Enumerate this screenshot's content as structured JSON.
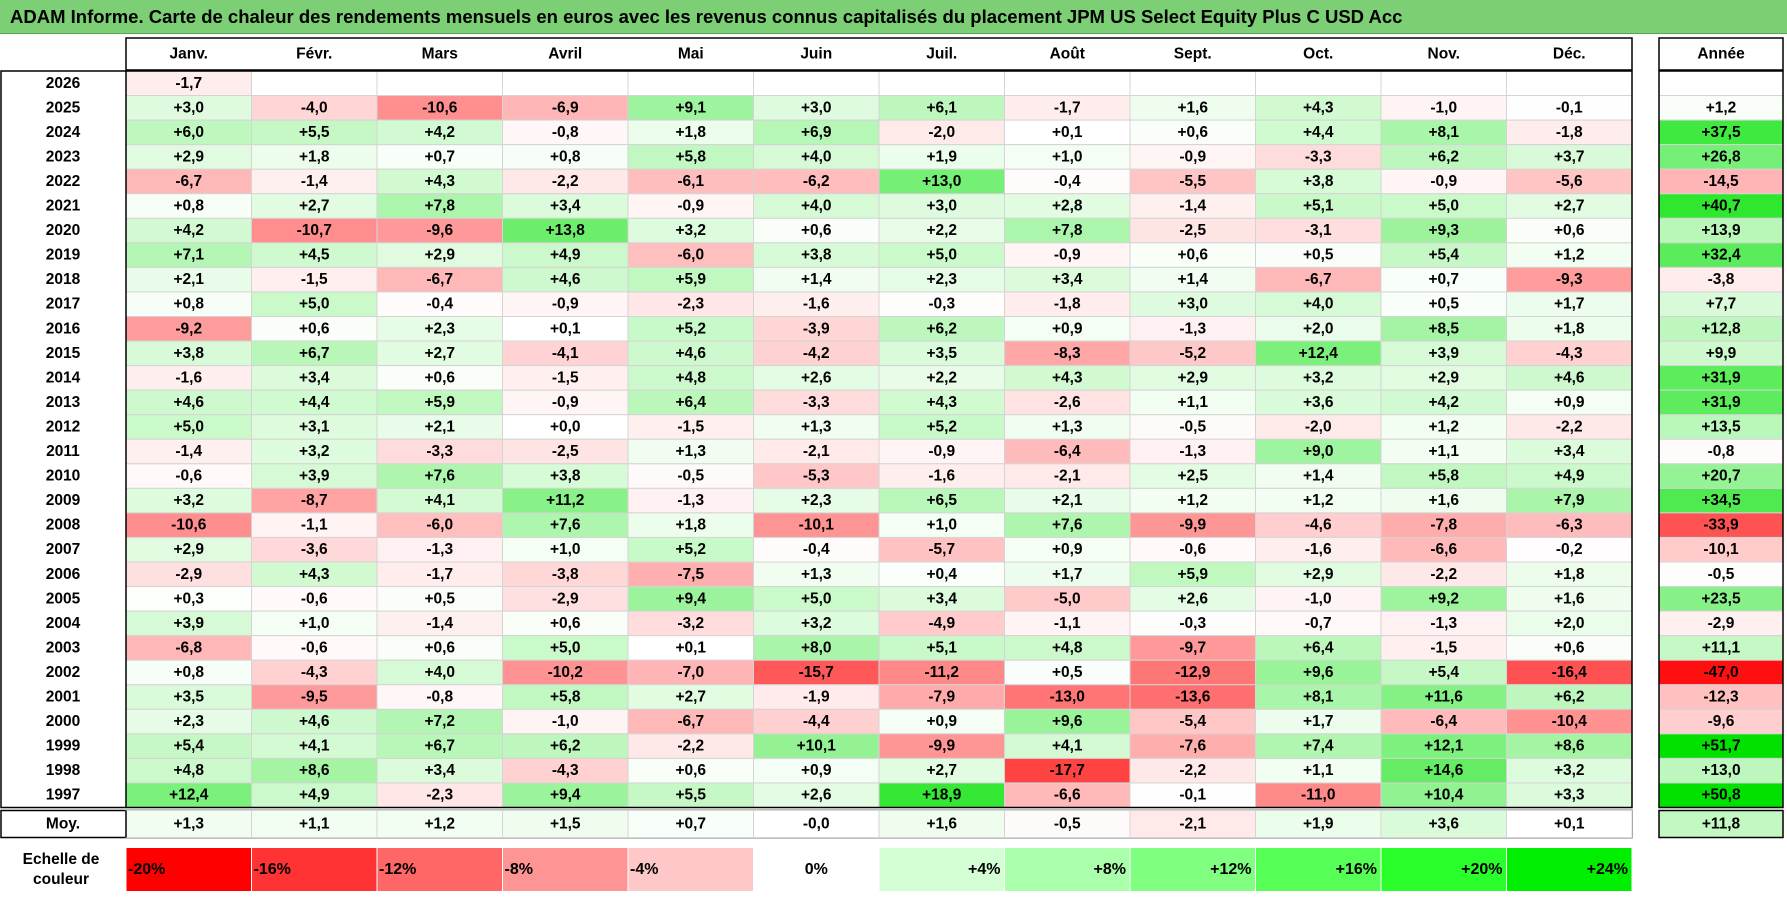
{
  "title": "ADAM Informe. Carte de chaleur des rendements mensuels en euros avec les revenus connus capitalisés du placement JPM US Select Equity Plus C USD Acc",
  "chart_data": {
    "type": "heatmap",
    "title": "ADAM Informe. Carte de chaleur des rendements mensuels en euros avec les revenus connus capitalisés du placement JPM US Select Equity Plus C USD Acc",
    "months": [
      "Janv.",
      "Févr.",
      "Mars",
      "Avril",
      "Mai",
      "Juin",
      "Juil.",
      "Août",
      "Sept.",
      "Oct.",
      "Nov.",
      "Déc."
    ],
    "year_header": "Année",
    "rows": [
      {
        "year": "2026",
        "months": [
          "-1,7",
          "",
          "",
          "",
          "",
          "",
          "",
          "",
          "",
          "",
          "",
          ""
        ],
        "annual": ""
      },
      {
        "year": "2025",
        "months": [
          "+3,0",
          "-4,0",
          "-10,6",
          "-6,9",
          "+9,1",
          "+3,0",
          "+6,1",
          "-1,7",
          "+1,6",
          "+4,3",
          "-1,0",
          "-0,1"
        ],
        "annual": "+1,2"
      },
      {
        "year": "2024",
        "months": [
          "+6,0",
          "+5,5",
          "+4,2",
          "-0,8",
          "+1,8",
          "+6,9",
          "-2,0",
          "+0,1",
          "+0,6",
          "+4,4",
          "+8,1",
          "-1,8"
        ],
        "annual": "+37,5"
      },
      {
        "year": "2023",
        "months": [
          "+2,9",
          "+1,8",
          "+0,7",
          "+0,8",
          "+5,8",
          "+4,0",
          "+1,9",
          "+1,0",
          "-0,9",
          "-3,3",
          "+6,2",
          "+3,7"
        ],
        "annual": "+26,8"
      },
      {
        "year": "2022",
        "months": [
          "-6,7",
          "-1,4",
          "+4,3",
          "-2,2",
          "-6,1",
          "-6,2",
          "+13,0",
          "-0,4",
          "-5,5",
          "+3,8",
          "-0,9",
          "-5,6"
        ],
        "annual": "-14,5"
      },
      {
        "year": "2021",
        "months": [
          "+0,8",
          "+2,7",
          "+7,8",
          "+3,4",
          "-0,9",
          "+4,0",
          "+3,0",
          "+2,8",
          "-1,4",
          "+5,1",
          "+5,0",
          "+2,7"
        ],
        "annual": "+40,7"
      },
      {
        "year": "2020",
        "months": [
          "+4,2",
          "-10,7",
          "-9,6",
          "+13,8",
          "+3,2",
          "+0,6",
          "+2,2",
          "+7,8",
          "-2,5",
          "-3,1",
          "+9,3",
          "+0,6"
        ],
        "annual": "+13,9"
      },
      {
        "year": "2019",
        "months": [
          "+7,1",
          "+4,5",
          "+2,9",
          "+4,9",
          "-6,0",
          "+3,8",
          "+5,0",
          "-0,9",
          "+0,6",
          "+0,5",
          "+5,4",
          "+1,2"
        ],
        "annual": "+32,4"
      },
      {
        "year": "2018",
        "months": [
          "+2,1",
          "-1,5",
          "-6,7",
          "+4,6",
          "+5,9",
          "+1,4",
          "+2,3",
          "+3,4",
          "+1,4",
          "-6,7",
          "+0,7",
          "-9,3"
        ],
        "annual": "-3,8"
      },
      {
        "year": "2017",
        "months": [
          "+0,8",
          "+5,0",
          "-0,4",
          "-0,9",
          "-2,3",
          "-1,6",
          "-0,3",
          "-1,8",
          "+3,0",
          "+4,0",
          "+0,5",
          "+1,7"
        ],
        "annual": "+7,7"
      },
      {
        "year": "2016",
        "months": [
          "-9,2",
          "+0,6",
          "+2,3",
          "+0,1",
          "+5,2",
          "-3,9",
          "+6,2",
          "+0,9",
          "-1,3",
          "+2,0",
          "+8,5",
          "+1,8"
        ],
        "annual": "+12,8"
      },
      {
        "year": "2015",
        "months": [
          "+3,8",
          "+6,7",
          "+2,7",
          "-4,1",
          "+4,6",
          "-4,2",
          "+3,5",
          "-8,3",
          "-5,2",
          "+12,4",
          "+3,9",
          "-4,3"
        ],
        "annual": "+9,9"
      },
      {
        "year": "2014",
        "months": [
          "-1,6",
          "+3,4",
          "+0,6",
          "-1,5",
          "+4,8",
          "+2,6",
          "+2,2",
          "+4,3",
          "+2,9",
          "+3,2",
          "+2,9",
          "+4,6"
        ],
        "annual": "+31,9"
      },
      {
        "year": "2013",
        "months": [
          "+4,6",
          "+4,4",
          "+5,9",
          "-0,9",
          "+6,4",
          "-3,3",
          "+4,3",
          "-2,6",
          "+1,1",
          "+3,6",
          "+4,2",
          "+0,9"
        ],
        "annual": "+31,9"
      },
      {
        "year": "2012",
        "months": [
          "+5,0",
          "+3,1",
          "+2,1",
          "+0,0",
          "-1,5",
          "+1,3",
          "+5,2",
          "+1,3",
          "-0,5",
          "-2,0",
          "+1,2",
          "-2,2"
        ],
        "annual": "+13,5"
      },
      {
        "year": "2011",
        "months": [
          "-1,4",
          "+3,2",
          "-3,3",
          "-2,5",
          "+1,3",
          "-2,1",
          "-0,9",
          "-6,4",
          "-1,3",
          "+9,0",
          "+1,1",
          "+3,4"
        ],
        "annual": "-0,8"
      },
      {
        "year": "2010",
        "months": [
          "-0,6",
          "+3,9",
          "+7,6",
          "+3,8",
          "-0,5",
          "-5,3",
          "-1,6",
          "-2,1",
          "+2,5",
          "+1,4",
          "+5,8",
          "+4,9"
        ],
        "annual": "+20,7"
      },
      {
        "year": "2009",
        "months": [
          "+3,2",
          "-8,7",
          "+4,1",
          "+11,2",
          "-1,3",
          "+2,3",
          "+6,5",
          "+2,1",
          "+1,2",
          "+1,2",
          "+1,6",
          "+7,9"
        ],
        "annual": "+34,5"
      },
      {
        "year": "2008",
        "months": [
          "-10,6",
          "-1,1",
          "-6,0",
          "+7,6",
          "+1,8",
          "-10,1",
          "+1,0",
          "+7,6",
          "-9,9",
          "-4,6",
          "-7,8",
          "-6,3"
        ],
        "annual": "-33,9"
      },
      {
        "year": "2007",
        "months": [
          "+2,9",
          "-3,6",
          "-1,3",
          "+1,0",
          "+5,2",
          "-0,4",
          "-5,7",
          "+0,9",
          "-0,6",
          "-1,6",
          "-6,6",
          "-0,2"
        ],
        "annual": "-10,1"
      },
      {
        "year": "2006",
        "months": [
          "-2,9",
          "+4,3",
          "-1,7",
          "-3,8",
          "-7,5",
          "+1,3",
          "+0,4",
          "+1,7",
          "+5,9",
          "+2,9",
          "-2,2",
          "+1,8"
        ],
        "annual": "-0,5"
      },
      {
        "year": "2005",
        "months": [
          "+0,3",
          "-0,6",
          "+0,5",
          "-2,9",
          "+9,4",
          "+5,0",
          "+3,4",
          "-5,0",
          "+2,6",
          "-1,0",
          "+9,2",
          "+1,6"
        ],
        "annual": "+23,5"
      },
      {
        "year": "2004",
        "months": [
          "+3,9",
          "+1,0",
          "-1,4",
          "+0,6",
          "-3,2",
          "+3,2",
          "-4,9",
          "-1,1",
          "-0,3",
          "-0,7",
          "-1,3",
          "+2,0"
        ],
        "annual": "-2,9"
      },
      {
        "year": "2003",
        "months": [
          "-6,8",
          "-0,6",
          "+0,6",
          "+5,0",
          "+0,1",
          "+8,0",
          "+5,1",
          "+4,8",
          "-9,7",
          "+6,4",
          "-1,5",
          "+0,6"
        ],
        "annual": "+11,1"
      },
      {
        "year": "2002",
        "months": [
          "+0,8",
          "-4,3",
          "+4,0",
          "-10,2",
          "-7,0",
          "-15,7",
          "-11,2",
          "+0,5",
          "-12,9",
          "+9,6",
          "+5,4",
          "-16,4"
        ],
        "annual": "-47,0"
      },
      {
        "year": "2001",
        "months": [
          "+3,5",
          "-9,5",
          "-0,8",
          "+5,8",
          "+2,7",
          "-1,9",
          "-7,9",
          "-13,0",
          "-13,6",
          "+8,1",
          "+11,6",
          "+6,2"
        ],
        "annual": "-12,3"
      },
      {
        "year": "2000",
        "months": [
          "+2,3",
          "+4,6",
          "+7,2",
          "-1,0",
          "-6,7",
          "-4,4",
          "+0,9",
          "+9,6",
          "-5,4",
          "+1,7",
          "-6,4",
          "-10,4"
        ],
        "annual": "-9,6"
      },
      {
        "year": "1999",
        "months": [
          "+5,4",
          "+4,1",
          "+6,7",
          "+6,2",
          "-2,2",
          "+10,1",
          "-9,9",
          "+4,1",
          "-7,6",
          "+7,4",
          "+12,1",
          "+8,6"
        ],
        "annual": "+51,7"
      },
      {
        "year": "1998",
        "months": [
          "+4,8",
          "+8,6",
          "+3,4",
          "-4,3",
          "+0,6",
          "+0,9",
          "+2,7",
          "-17,7",
          "-2,2",
          "+1,1",
          "+14,6",
          "+3,2"
        ],
        "annual": "+13,0"
      },
      {
        "year": "1997",
        "months": [
          "+12,4",
          "+4,9",
          "-2,3",
          "+9,4",
          "+5,5",
          "+2,6",
          "+18,9",
          "-6,6",
          "-0,1",
          "-11,0",
          "+10,4",
          "+3,3"
        ],
        "annual": "+50,8"
      }
    ],
    "average": {
      "label": "Moy.",
      "months": [
        "+1,3",
        "+1,1",
        "+1,2",
        "+1,5",
        "+0,7",
        "-0,0",
        "+1,6",
        "-0,5",
        "-2,1",
        "+1,9",
        "+3,6",
        "+0,1"
      ],
      "annual": "+11,8"
    },
    "scale": {
      "label_line1": "Echelle de",
      "label_line2": "couleur",
      "items": [
        {
          "label": "-20%",
          "value": -20,
          "color": "#ff0000"
        },
        {
          "label": "-16%",
          "value": -16,
          "color": "#ff3333"
        },
        {
          "label": "-12%",
          "value": -12,
          "color": "#ff6666"
        },
        {
          "label": "-8%",
          "value": -8,
          "color": "#ff9494"
        },
        {
          "label": "-4%",
          "value": -4,
          "color": "#ffc8c8"
        },
        {
          "label": "0%",
          "value": 0,
          "color": "#ffffff"
        },
        {
          "label": "+4%",
          "value": 4,
          "color": "#d4ffd4"
        },
        {
          "label": "+8%",
          "value": 8,
          "color": "#aaffaa"
        },
        {
          "label": "+12%",
          "value": 12,
          "color": "#80ff80"
        },
        {
          "label": "+16%",
          "value": 16,
          "color": "#55ff55"
        },
        {
          "label": "+20%",
          "value": 20,
          "color": "#2bff2b"
        },
        {
          "label": "+24%",
          "value": 24,
          "color": "#00ee00"
        }
      ]
    },
    "colors": {
      "title_background": "#7dcf75",
      "negative_max": "#ff0000",
      "positive_max": "#00dd00",
      "neutral": "#ffffff"
    }
  }
}
